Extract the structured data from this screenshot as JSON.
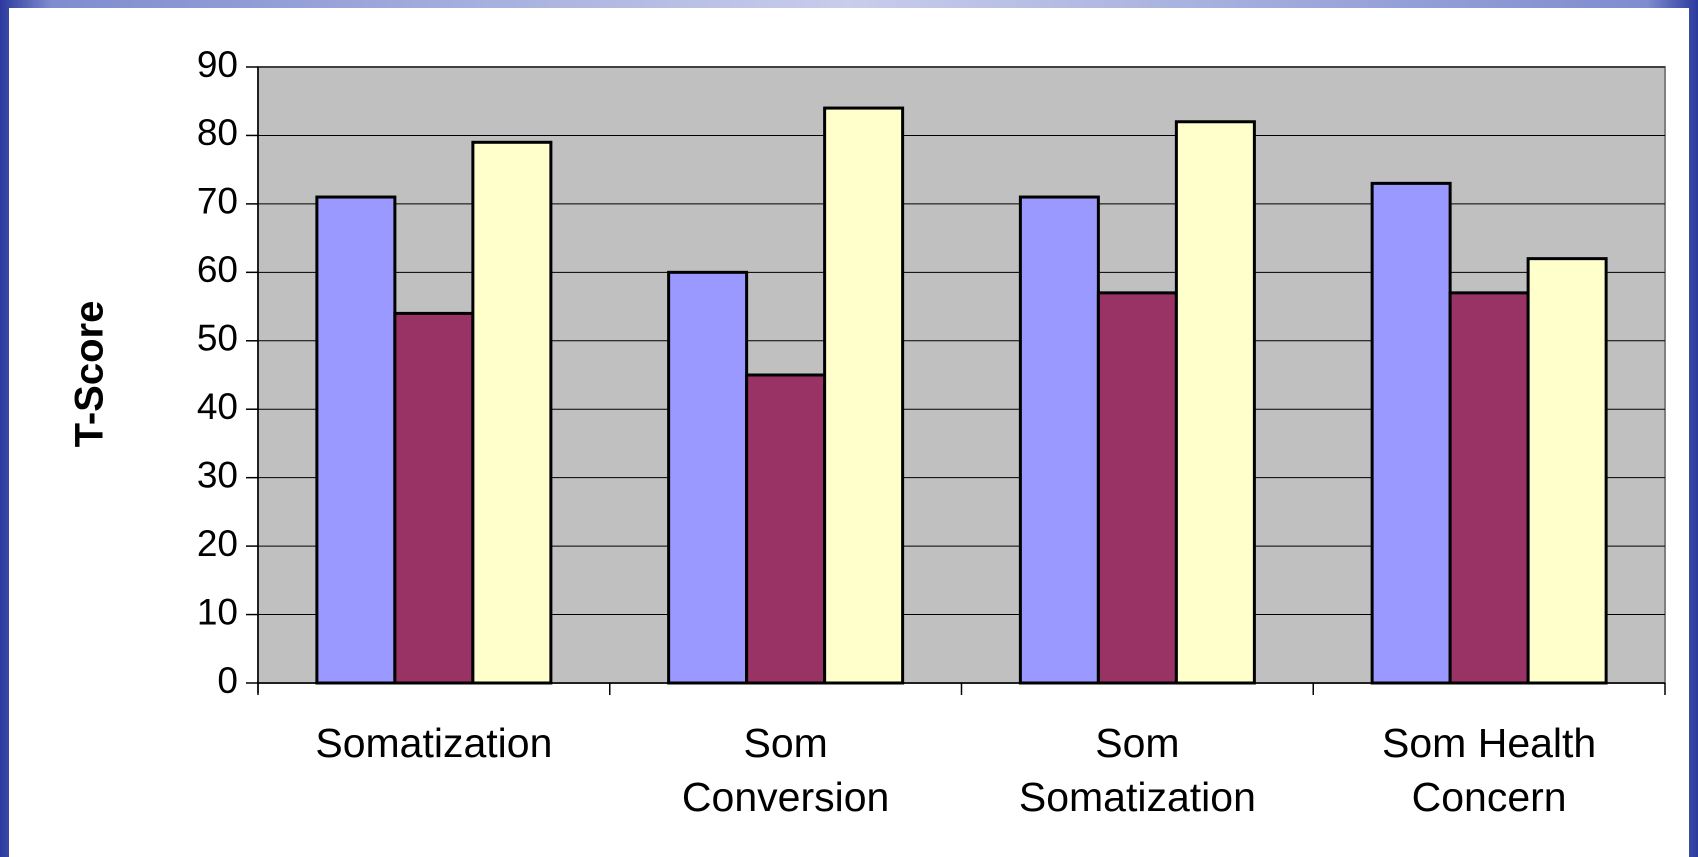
{
  "chart_data": {
    "type": "bar",
    "y_label": "T-Score",
    "categories": [
      "Somatization",
      "Som\nConversion",
      "Som\nSomatization",
      "Som Health\nConcern"
    ],
    "series": [
      {
        "color": "#9999ff",
        "values": [
          71,
          60,
          71,
          73
        ]
      },
      {
        "color": "#993366",
        "values": [
          54,
          45,
          57,
          57
        ]
      },
      {
        "color": "#ffffcc",
        "values": [
          79,
          84,
          82,
          62
        ]
      }
    ],
    "ylim": [
      0,
      90
    ],
    "yticks": [
      0,
      10,
      20,
      30,
      40,
      50,
      60,
      70,
      80,
      90
    ],
    "grid": true,
    "plot_background": "#c0c0c0"
  }
}
